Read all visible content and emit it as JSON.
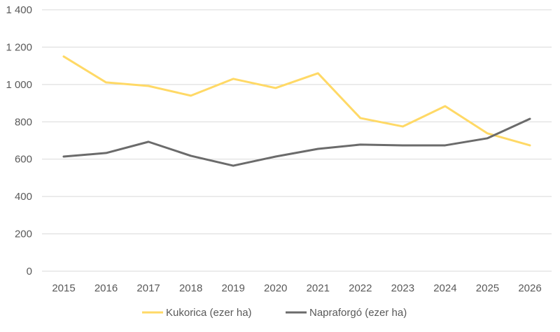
{
  "chart_data": {
    "type": "line",
    "title": "",
    "xlabel": "",
    "ylabel": "",
    "categories": [
      "2015",
      "2016",
      "2017",
      "2018",
      "2019",
      "2020",
      "2021",
      "2022",
      "2023",
      "2024",
      "2025",
      "2026"
    ],
    "ylim": [
      0,
      1400
    ],
    "yticks": [
      0,
      200,
      400,
      600,
      800,
      1000,
      1200,
      1400
    ],
    "ytick_labels": [
      "0",
      "200",
      "400",
      "600",
      "800",
      "1 000",
      "1 200",
      "1 400"
    ],
    "grid": "horizontal",
    "legend_position": "bottom",
    "series": [
      {
        "name": "Kukorica (ezer ha)",
        "color": "#FFD966",
        "values": [
          1150,
          1011,
          992,
          940,
          1030,
          981,
          1060,
          820,
          775,
          884,
          738,
          674
        ]
      },
      {
        "name": "Napraforgó (ezer ha)",
        "color": "#6B6B6B",
        "values": [
          614,
          633,
          693,
          618,
          565,
          614,
          655,
          678,
          674,
          674,
          712,
          816
        ]
      }
    ]
  }
}
